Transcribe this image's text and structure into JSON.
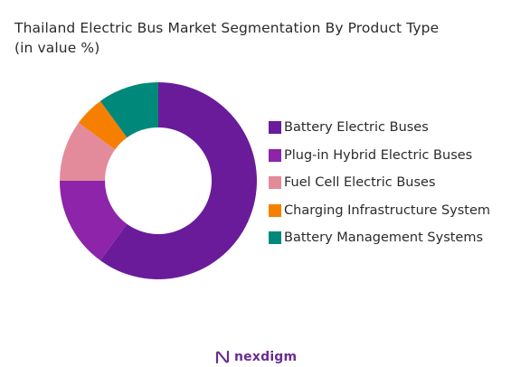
{
  "chart_data": {
    "type": "pie",
    "variant": "donut",
    "title": "Thailand Electric Bus Market Segmentation By Product Type",
    "subtitle": "(in value %)",
    "legend_position": "right",
    "slices": [
      {
        "label": "Battery Electric Buses",
        "value": 60,
        "color": "#6a1b9a"
      },
      {
        "label": "Plug-in Hybrid Electric Buses",
        "value": 15,
        "color": "#8e24aa"
      },
      {
        "label": "Fuel Cell Electric Buses",
        "value": 10,
        "color": "#e38b9b"
      },
      {
        "label": "Charging Infrastructure System",
        "value": 5,
        "color": "#f77f00"
      },
      {
        "label": "Battery Management Systems",
        "value": 10,
        "color": "#00897b"
      }
    ]
  },
  "brand": {
    "logo_text": "nexdigm",
    "color": "#6b2d8e"
  }
}
